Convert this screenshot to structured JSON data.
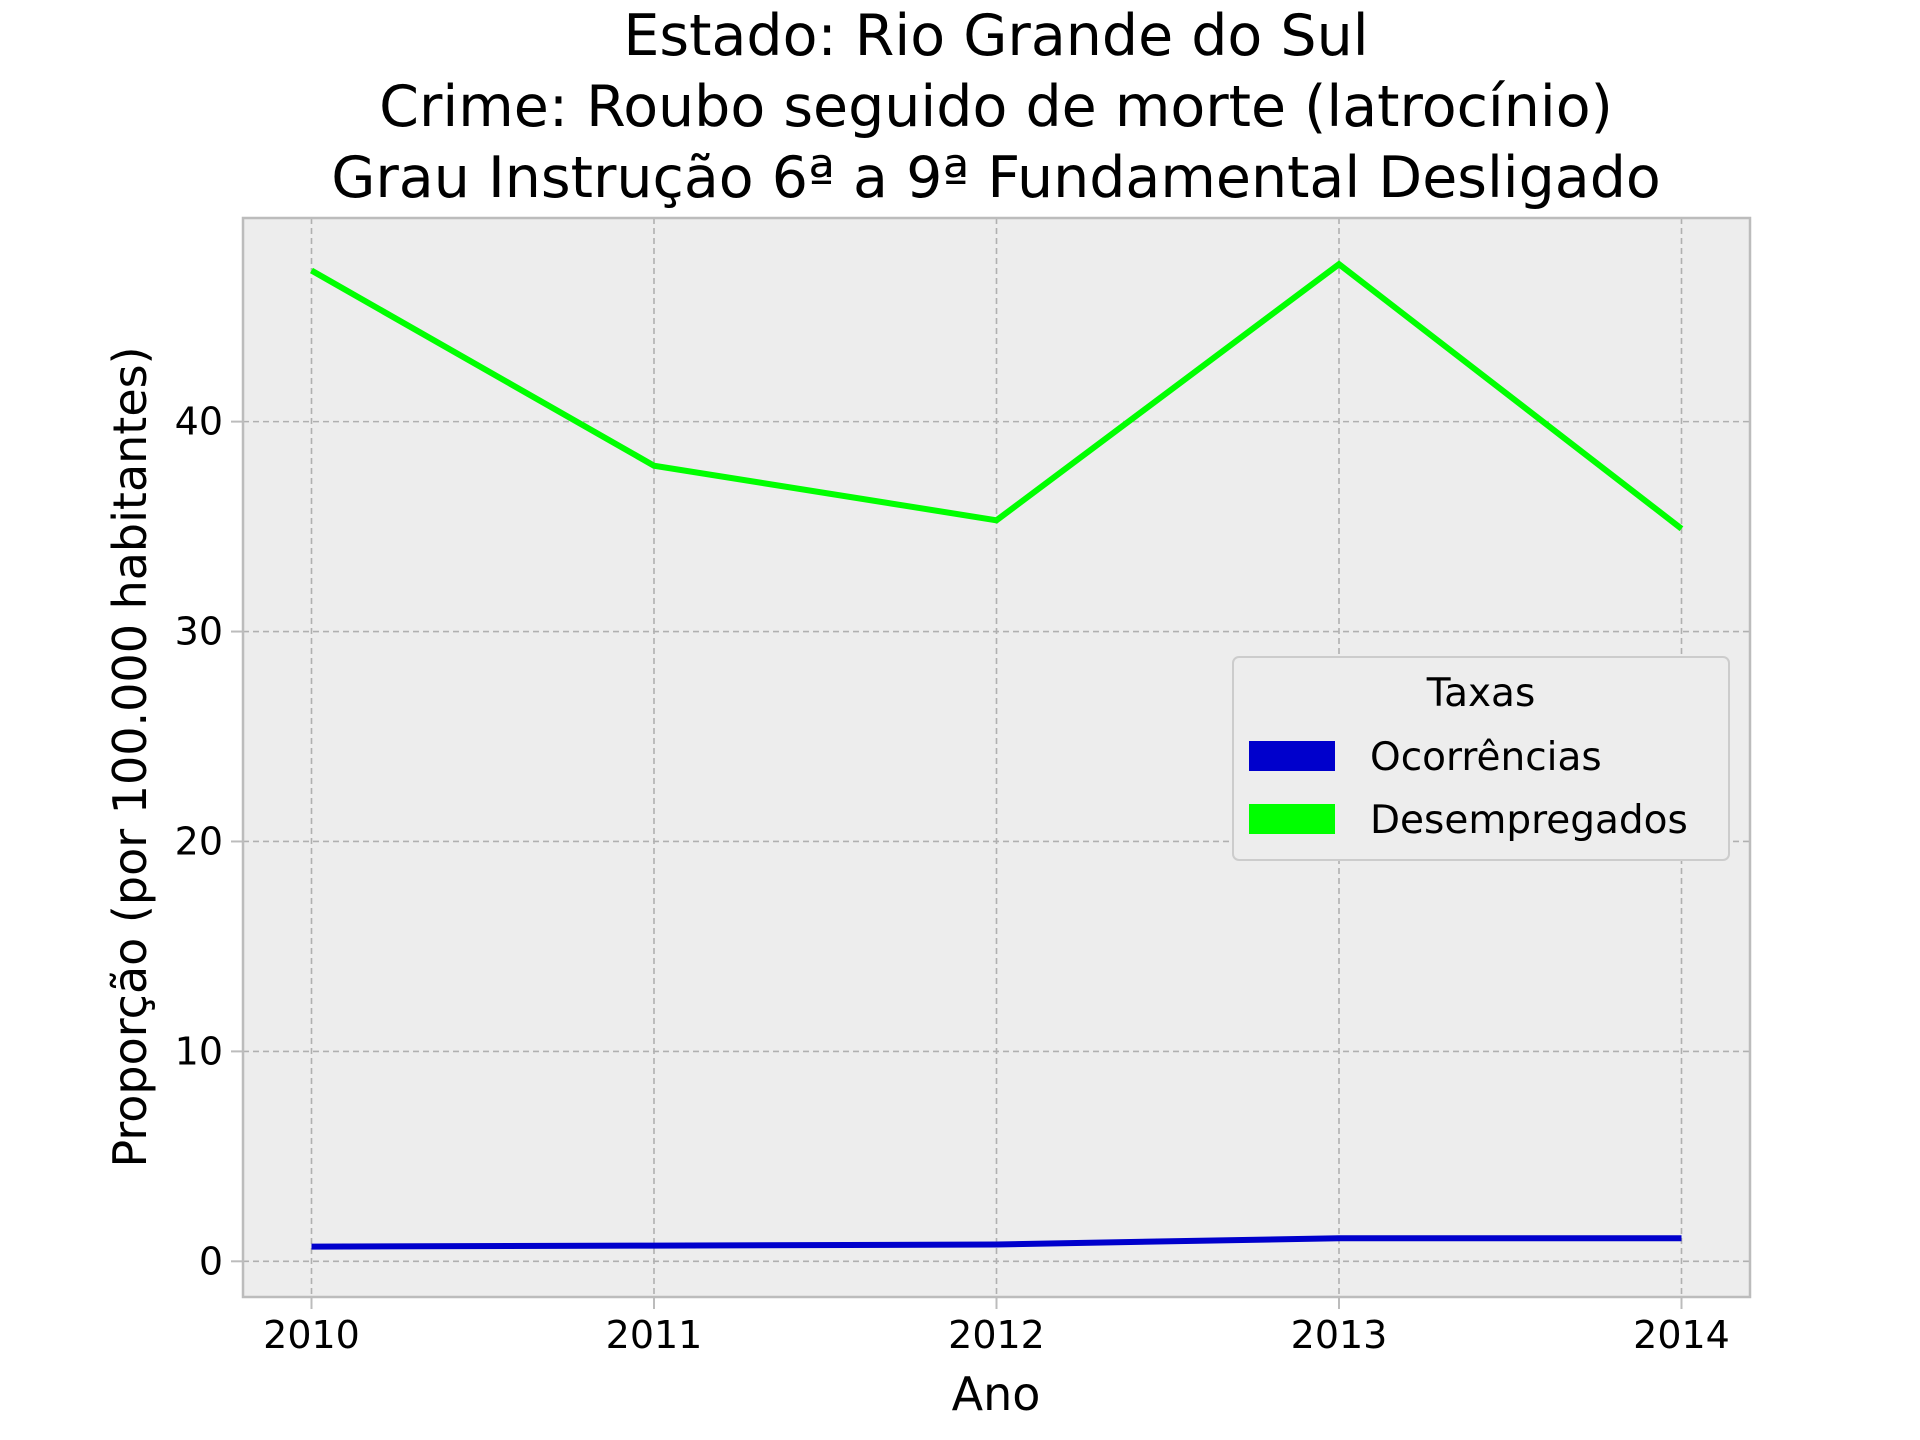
{
  "chart_data": {
    "type": "line",
    "title_lines": [
      "Estado: Rio Grande do Sul",
      "Crime: Roubo seguido de morte (latrocínio)",
      "Grau Instrução  6ª a 9ª Fundamental   Desligado"
    ],
    "xlabel": "Ano",
    "ylabel": "Proporção (por 100.000 habitantes)",
    "x": [
      2010,
      2011,
      2012,
      2013,
      2014
    ],
    "x_tick_labels": [
      "2010",
      "2011",
      "2012",
      "2013",
      "2014"
    ],
    "y_ticks": [
      0,
      10,
      20,
      30,
      40
    ],
    "y_tick_labels": [
      "0",
      "10",
      "20",
      "30",
      "40"
    ],
    "xlim": [
      2009.8,
      2014.2
    ],
    "ylim": [
      -1.7,
      49.7
    ],
    "grid": true,
    "legend": {
      "title": "Taxas",
      "placement": "center-right"
    },
    "series": [
      {
        "name": "Ocorrências",
        "color": "#0000cc",
        "values": [
          0.7,
          0.75,
          0.8,
          1.1,
          1.1
        ]
      },
      {
        "name": "Desempregados",
        "color": "#00ff00",
        "values": [
          47.2,
          37.9,
          35.3,
          47.5,
          34.9
        ]
      }
    ],
    "colors": {
      "plot_background": "#ededed",
      "spine": "#bcbcbc",
      "grid": "#b0b0b0"
    }
  }
}
